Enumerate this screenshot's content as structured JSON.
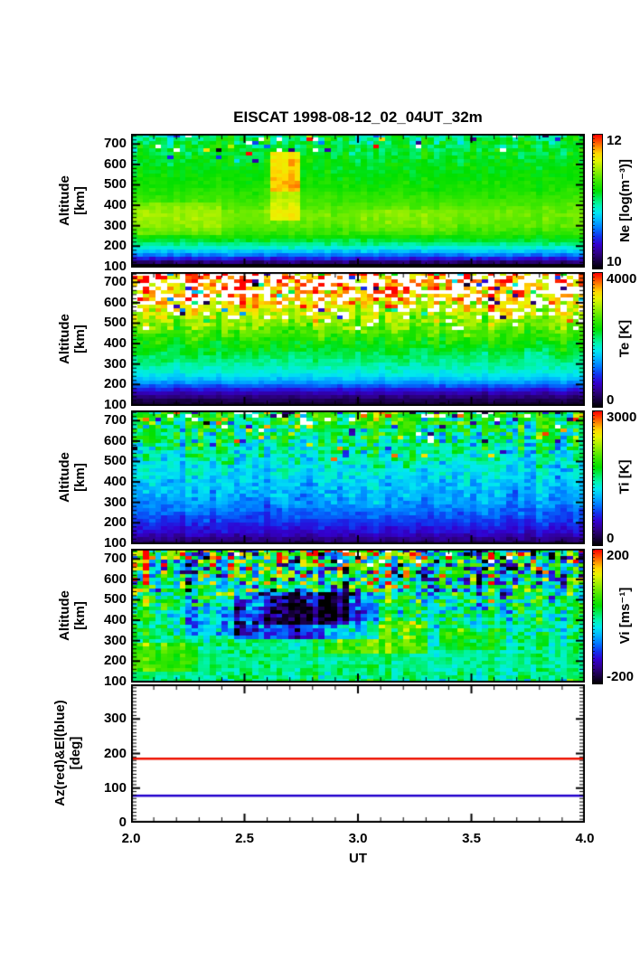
{
  "title": "EISCAT 1998-08-12_02_04UT_32m",
  "axes": {
    "x_label": "UT",
    "x_tick_labels": [
      "2.0",
      "2.5",
      "3.0",
      "3.5",
      "4.0"
    ],
    "altitude_label": [
      "Altitude",
      "[km]"
    ],
    "azel_label": [
      "Az(red)&El(blue)",
      "[deg]"
    ],
    "alt_tick_labels": [
      "100",
      "200",
      "300",
      "400",
      "500",
      "600",
      "700"
    ],
    "deg_tick_labels": [
      "0",
      "100",
      "200",
      "300"
    ]
  },
  "colormap": [
    [
      0,
      "#000000"
    ],
    [
      0.05,
      "#16003c"
    ],
    [
      0.12,
      "#30008c"
    ],
    [
      0.18,
      "#3300d0"
    ],
    [
      0.24,
      "#1133ee"
    ],
    [
      0.3,
      "#0077ff"
    ],
    [
      0.36,
      "#00b4ff"
    ],
    [
      0.42,
      "#00e8f0"
    ],
    [
      0.47,
      "#00f4b4"
    ],
    [
      0.52,
      "#00ee66"
    ],
    [
      0.58,
      "#00e000"
    ],
    [
      0.66,
      "#44e800"
    ],
    [
      0.74,
      "#9cf000"
    ],
    [
      0.81,
      "#e8f400"
    ],
    [
      0.86,
      "#ffd800"
    ],
    [
      0.91,
      "#ff8c00"
    ],
    [
      0.96,
      "#ff3c00"
    ],
    [
      1,
      "#ff0000"
    ]
  ],
  "chart_data": [
    {
      "id": "ne",
      "type": "heatmap",
      "title": "Electron density",
      "x": {
        "label": "UT",
        "min": 2.0,
        "max": 4.0,
        "major_ticks": [
          2.0,
          2.5,
          3.0,
          3.5,
          4.0
        ],
        "minor_step": 0.1
      },
      "y": {
        "label": "Altitude [km]",
        "min": 95,
        "max": 750,
        "ticks": [
          100,
          200,
          300,
          400,
          500,
          600,
          700
        ],
        "minor_step": 20
      },
      "z": {
        "min": 10,
        "max": 12
      },
      "colorbar": {
        "label": "Ne [log(m⁻³)]",
        "max_label": "12",
        "min_label": "10"
      },
      "grid": {
        "cols": 75,
        "rows": 37
      },
      "profile": [
        [
          95,
          10.0
        ],
        [
          112,
          10.08
        ],
        [
          130,
          10.3
        ],
        [
          150,
          10.55
        ],
        [
          170,
          10.72
        ],
        [
          200,
          10.95
        ],
        [
          230,
          11.12
        ],
        [
          260,
          11.26
        ],
        [
          300,
          11.36
        ],
        [
          360,
          11.4
        ],
        [
          420,
          11.3
        ],
        [
          480,
          11.22
        ],
        [
          560,
          11.16
        ],
        [
          640,
          11.12
        ],
        [
          700,
          11.1
        ],
        [
          750,
          11.02
        ]
      ],
      "noise": [
        [
          95,
          0.1
        ],
        [
          150,
          0.08
        ],
        [
          400,
          0.06
        ],
        [
          560,
          0.08
        ],
        [
          640,
          0.14
        ],
        [
          700,
          0.22
        ],
        [
          750,
          0.3
        ]
      ],
      "outlier_prob": [
        [
          600,
          0
        ],
        [
          660,
          0.03
        ],
        [
          750,
          0.08
        ]
      ],
      "missing_prob": [
        [
          640,
          0
        ],
        [
          700,
          0.02
        ],
        [
          750,
          0.05
        ]
      ],
      "black_below_km": 110,
      "features": [
        [
          2.0,
          2.4,
          250,
          420,
          0.1
        ],
        [
          2.62,
          2.74,
          460,
          660,
          0.55
        ],
        [
          2.62,
          2.74,
          330,
          460,
          0.25
        ],
        [
          3.0,
          3.45,
          250,
          380,
          0.05
        ]
      ],
      "seed": 7
    },
    {
      "id": "te",
      "type": "heatmap",
      "title": "Electron temperature",
      "x": {
        "label": "UT",
        "min": 2.0,
        "max": 4.0,
        "major_ticks": [
          2.0,
          2.5,
          3.0,
          3.5,
          4.0
        ],
        "minor_step": 0.1
      },
      "y": {
        "label": "Altitude [km]",
        "min": 95,
        "max": 750,
        "ticks": [
          100,
          200,
          300,
          400,
          500,
          600,
          700
        ],
        "minor_step": 20
      },
      "z": {
        "min": 0,
        "max": 4000
      },
      "colorbar": {
        "label": "Te [K]",
        "max_label": "4000",
        "min_label": "0"
      },
      "grid": {
        "cols": 75,
        "rows": 37
      },
      "profile": [
        [
          95,
          120
        ],
        [
          120,
          260
        ],
        [
          140,
          420
        ],
        [
          160,
          640
        ],
        [
          180,
          900
        ],
        [
          200,
          1200
        ],
        [
          220,
          1450
        ],
        [
          250,
          1700
        ],
        [
          290,
          1900
        ],
        [
          330,
          2050
        ],
        [
          380,
          2280
        ],
        [
          440,
          2550
        ],
        [
          500,
          2850
        ],
        [
          560,
          3150
        ],
        [
          620,
          3450
        ],
        [
          700,
          3650
        ],
        [
          750,
          3750
        ]
      ],
      "noise": [
        [
          95,
          80
        ],
        [
          200,
          120
        ],
        [
          300,
          180
        ],
        [
          400,
          280
        ],
        [
          500,
          450
        ],
        [
          600,
          650
        ],
        [
          750,
          800
        ]
      ],
      "outlier_prob": [
        [
          480,
          0
        ],
        [
          560,
          0.08
        ],
        [
          650,
          0.15
        ],
        [
          750,
          0.2
        ]
      ],
      "missing_prob": [
        [
          460,
          0
        ],
        [
          540,
          0.1
        ],
        [
          620,
          0.3
        ],
        [
          700,
          0.42
        ],
        [
          750,
          0.5
        ]
      ],
      "features": [],
      "seed": 13
    },
    {
      "id": "ti",
      "type": "heatmap",
      "title": "Ion temperature",
      "x": {
        "label": "UT",
        "min": 2.0,
        "max": 4.0,
        "major_ticks": [
          2.0,
          2.5,
          3.0,
          3.5,
          4.0
        ],
        "minor_step": 0.1
      },
      "y": {
        "label": "Altitude [km]",
        "min": 95,
        "max": 750,
        "ticks": [
          100,
          200,
          300,
          400,
          500,
          600,
          700
        ],
        "minor_step": 20
      },
      "z": {
        "min": 0,
        "max": 3000
      },
      "colorbar": {
        "label": "Ti [K]",
        "max_label": "3000",
        "min_label": "0"
      },
      "grid": {
        "cols": 75,
        "rows": 37
      },
      "profile": [
        [
          95,
          200
        ],
        [
          120,
          350
        ],
        [
          150,
          520
        ],
        [
          200,
          700
        ],
        [
          250,
          850
        ],
        [
          300,
          1000
        ],
        [
          360,
          1100
        ],
        [
          420,
          1200
        ],
        [
          480,
          1300
        ],
        [
          540,
          1400
        ],
        [
          600,
          1500
        ],
        [
          660,
          1600
        ],
        [
          750,
          1750
        ]
      ],
      "noise": [
        [
          95,
          100
        ],
        [
          200,
          130
        ],
        [
          300,
          200
        ],
        [
          400,
          260
        ],
        [
          500,
          380
        ],
        [
          600,
          600
        ],
        [
          750,
          750
        ]
      ],
      "outlier_prob": [
        [
          500,
          0
        ],
        [
          580,
          0.06
        ],
        [
          680,
          0.15
        ],
        [
          750,
          0.25
        ]
      ],
      "missing_prob": [
        [
          580,
          0
        ],
        [
          660,
          0.03
        ],
        [
          750,
          0.1
        ]
      ],
      "features": [],
      "seed": 21
    },
    {
      "id": "vi",
      "type": "heatmap",
      "title": "Ion velocity",
      "x": {
        "label": "UT",
        "min": 2.0,
        "max": 4.0,
        "major_ticks": [
          2.0,
          2.5,
          3.0,
          3.5,
          4.0
        ],
        "minor_step": 0.1
      },
      "y": {
        "label": "Altitude [km]",
        "min": 95,
        "max": 750,
        "ticks": [
          100,
          200,
          300,
          400,
          500,
          600,
          700
        ],
        "minor_step": 20
      },
      "z": {
        "min": -200,
        "max": 200
      },
      "colorbar": {
        "label": "Vi [ms⁻¹]",
        "max_label": "200",
        "min_label": "-200"
      },
      "grid": {
        "cols": 75,
        "rows": 37
      },
      "profile": [
        [
          95,
          0
        ],
        [
          750,
          0
        ]
      ],
      "noise": [
        [
          95,
          90
        ],
        [
          120,
          45
        ],
        [
          200,
          28
        ],
        [
          280,
          45
        ],
        [
          360,
          70
        ],
        [
          440,
          95
        ],
        [
          520,
          140
        ],
        [
          600,
          210
        ],
        [
          680,
          260
        ],
        [
          750,
          280
        ]
      ],
      "outlier_prob": [
        [
          560,
          0
        ],
        [
          640,
          0.12
        ],
        [
          750,
          0.3
        ]
      ],
      "missing_prob": [
        [
          640,
          0
        ],
        [
          750,
          0.03
        ]
      ],
      "features": [
        [
          2.45,
          3.1,
          300,
          545,
          -110
        ],
        [
          2.6,
          2.95,
          370,
          560,
          -70
        ],
        [
          2.85,
          3.3,
          240,
          390,
          65
        ],
        [
          2.0,
          2.3,
          140,
          290,
          55
        ],
        [
          3.35,
          3.65,
          250,
          360,
          35
        ],
        [
          2.25,
          2.5,
          320,
          470,
          -50
        ]
      ],
      "seed": 33
    },
    {
      "id": "azel",
      "type": "line",
      "title": "Antenna pointing",
      "x": {
        "label": "UT",
        "min": 2.0,
        "max": 4.0,
        "major_ticks": [
          2.0,
          2.5,
          3.0,
          3.5,
          4.0
        ],
        "minor_step": 0.1
      },
      "y": {
        "label": "Az(red)&El(blue) [deg]",
        "min": 0,
        "max": 400,
        "ticks": [
          0,
          100,
          200,
          300
        ],
        "minor_step": 10
      },
      "series": [
        {
          "name": "Az",
          "color": "#ee1100",
          "value": 185
        },
        {
          "name": "El",
          "color": "#2200cc",
          "value": 78
        }
      ]
    }
  ]
}
